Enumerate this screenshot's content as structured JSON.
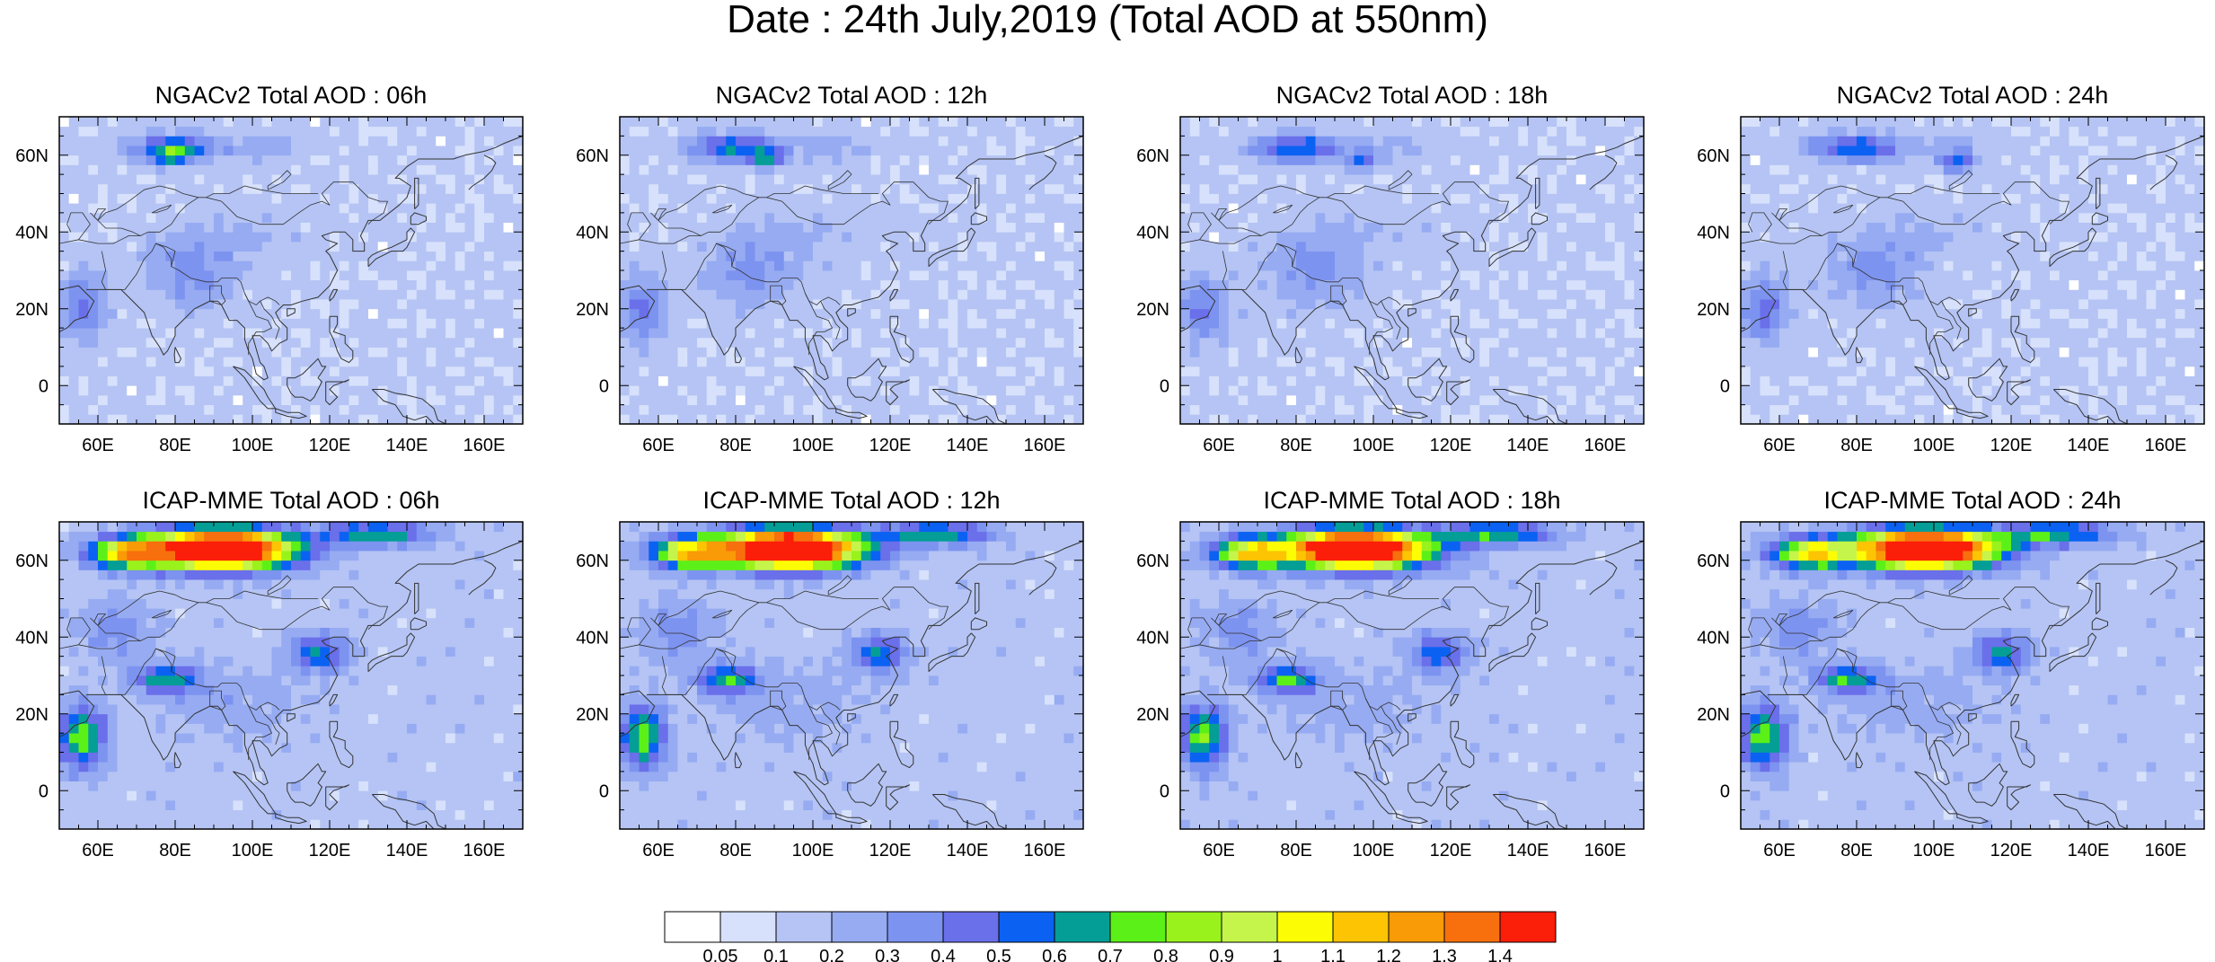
{
  "main_title": "Date : 24th July,2019 (Total AOD at 550nm)",
  "axes": {
    "lon_labels": [
      "60E",
      "80E",
      "100E",
      "120E",
      "140E",
      "160E"
    ],
    "lat_labels": [
      "60N",
      "40N",
      "20N",
      "0"
    ],
    "lon_range_deg": [
      50,
      170
    ],
    "lat_range_deg": [
      -10,
      70
    ]
  },
  "panels": [
    {
      "title": "NGACv2 Total AOD : 06h",
      "model": "NGACv2",
      "hour": "06h"
    },
    {
      "title": "NGACv2 Total AOD : 12h",
      "model": "NGACv2",
      "hour": "12h"
    },
    {
      "title": "NGACv2 Total AOD : 18h",
      "model": "NGACv2",
      "hour": "18h"
    },
    {
      "title": "NGACv2 Total AOD : 24h",
      "model": "NGACv2",
      "hour": "24h"
    },
    {
      "title": "ICAP-MME Total AOD : 06h",
      "model": "ICAP-MME",
      "hour": "06h"
    },
    {
      "title": "ICAP-MME Total AOD : 12h",
      "model": "ICAP-MME",
      "hour": "12h"
    },
    {
      "title": "ICAP-MME Total AOD : 18h",
      "model": "ICAP-MME",
      "hour": "18h"
    },
    {
      "title": "ICAP-MME Total AOD : 24h",
      "model": "ICAP-MME",
      "hour": "24h"
    }
  ],
  "colorbar": {
    "labels": [
      "0.05",
      "0.1",
      "0.2",
      "0.3",
      "0.4",
      "0.5",
      "0.6",
      "0.7",
      "0.8",
      "0.9",
      "1",
      "1.1",
      "1.2",
      "1.3",
      "1.4"
    ],
    "colors": [
      "#ffffff",
      "#d7e1fb",
      "#b5c4f4",
      "#96abf2",
      "#7d93f0",
      "#6a6fea",
      "#0b62f2",
      "#049e96",
      "#5cf019",
      "#99f21c",
      "#c5f54a",
      "#fcfc05",
      "#fdc403",
      "#f99a07",
      "#f7700d",
      "#fb1e08"
    ]
  },
  "colors": {
    "background": "#ffffff",
    "coastline": "#333333",
    "frame": "#000000"
  }
}
